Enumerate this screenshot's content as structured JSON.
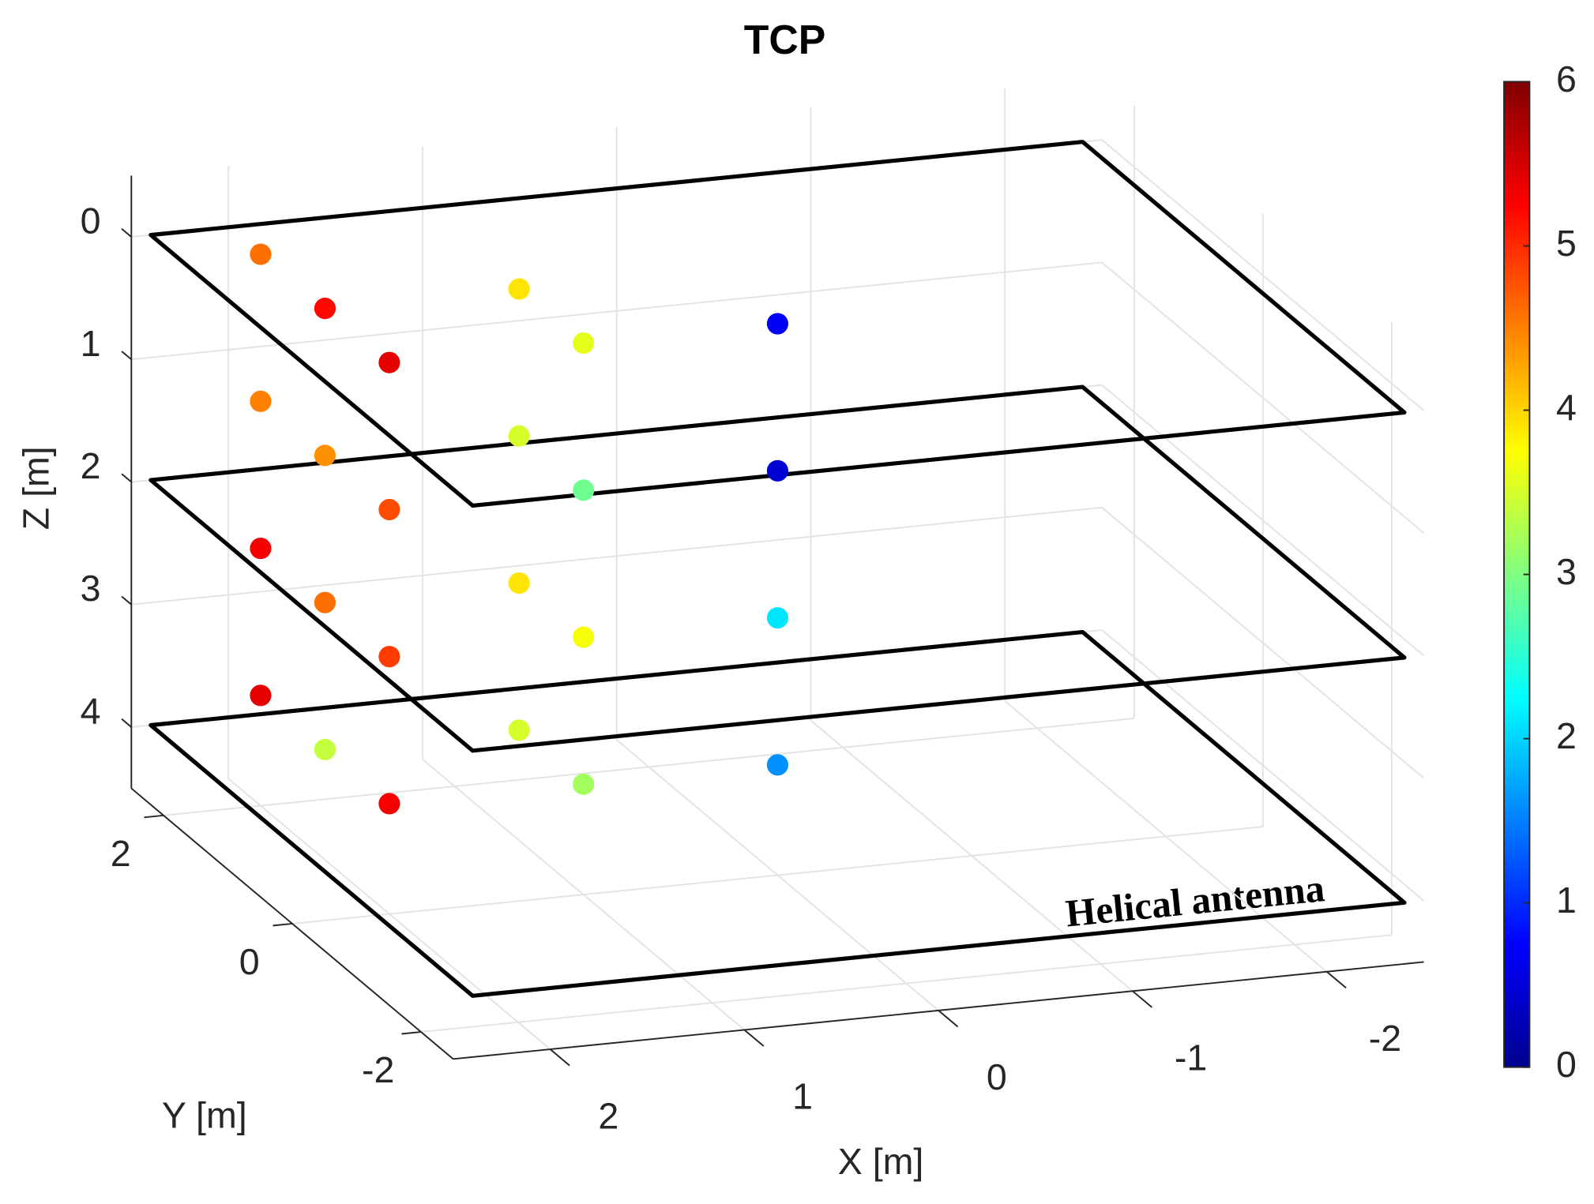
{
  "chart_data": {
    "type": "scatter3d",
    "title": "TCP",
    "xlabel": "X [m]",
    "ylabel": "Y [m]",
    "zlabel": "Z [m]",
    "annotation": "Helical antenna",
    "x": [
      2,
      2,
      2,
      1,
      1,
      0,
      2,
      2,
      2,
      1,
      1,
      0,
      2,
      2,
      2,
      1,
      1,
      0,
      2,
      2,
      2,
      1,
      1,
      0
    ],
    "y": [
      2,
      1,
      0,
      1,
      0,
      0,
      2,
      1,
      0,
      1,
      0,
      0,
      2,
      1,
      0,
      1,
      0,
      0,
      2,
      1,
      0,
      1,
      0,
      0
    ],
    "z": [
      0,
      0,
      0,
      0,
      0,
      0,
      1.2,
      1.2,
      1.2,
      1.2,
      1.2,
      1.2,
      2.4,
      2.4,
      2.4,
      2.4,
      2.4,
      2.4,
      3.6,
      3.6,
      3.6,
      3.6,
      3.6,
      3.6
    ],
    "values": [
      4.6,
      5.2,
      5.4,
      3.9,
      3.6,
      0.7,
      4.5,
      4.4,
      4.8,
      3.5,
      2.9,
      0.5,
      5.3,
      4.6,
      4.9,
      3.9,
      3.7,
      2.1,
      5.4,
      3.4,
      5.3,
      3.5,
      3.2,
      1.6
    ],
    "planes": [
      0,
      2,
      4
    ],
    "plane_x": [
      -2.4,
      2.4
    ],
    "plane_y": [
      -2.5,
      2.5
    ],
    "xlim": [
      -2.5,
      2.5
    ],
    "ylim": [
      -2.5,
      2.5
    ],
    "zlim": [
      -0.5,
      4.5
    ],
    "xticks": [
      -2,
      -1,
      0,
      1,
      2
    ],
    "yticks": [
      -2,
      0,
      2
    ],
    "zticks": [
      0,
      1,
      2,
      3,
      4
    ],
    "zreverse": true,
    "colormap": "jet",
    "clim": [
      0,
      6
    ],
    "cticks": [
      0,
      1,
      2,
      3,
      4,
      5,
      6
    ],
    "grid": true
  }
}
